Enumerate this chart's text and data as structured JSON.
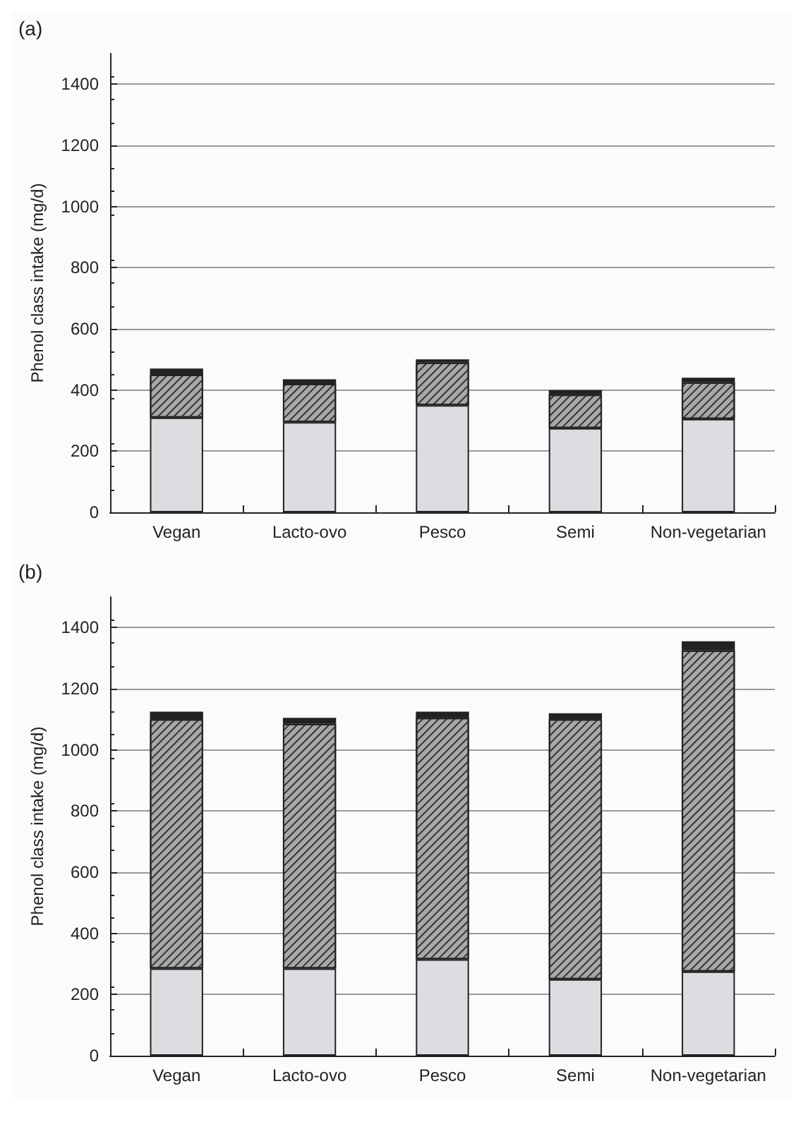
{
  "chart_data": [
    {
      "type": "bar",
      "title": "(a)",
      "ylabel": "Phenol class intake (mg/d)",
      "categories": [
        "Vegan",
        "Lacto-ovo",
        "Pesco",
        "Semi",
        "Non-vegetarian"
      ],
      "stacked": true,
      "series": [
        {
          "color": "#dcdde0",
          "values": [
            310,
            295,
            350,
            275,
            305
          ]
        },
        {
          "color": "#a8a8a8",
          "values": [
            140,
            125,
            140,
            110,
            120
          ]
        },
        {
          "color": "#222222",
          "values": [
            20,
            15,
            10,
            15,
            15
          ]
        }
      ],
      "ylim": [
        0,
        1500
      ],
      "yticks": [
        0,
        200,
        400,
        600,
        800,
        1000,
        1200,
        1400
      ],
      "grid": "y"
    },
    {
      "type": "bar",
      "title": "(b)",
      "ylabel": "Phenol class intake (mg/d)",
      "categories": [
        "Vegan",
        "Lacto-ovo",
        "Pesco",
        "Semi",
        "Non-vegetarian"
      ],
      "stacked": true,
      "series": [
        {
          "color": "#dcdde0",
          "values": [
            285,
            285,
            315,
            250,
            275
          ]
        },
        {
          "color": "#a8a8a8",
          "values": [
            815,
            800,
            790,
            850,
            1050
          ]
        },
        {
          "color": "#222222",
          "values": [
            25,
            20,
            20,
            20,
            30
          ]
        }
      ],
      "ylim": [
        0,
        1500
      ],
      "yticks": [
        0,
        200,
        400,
        600,
        800,
        1000,
        1200,
        1400
      ],
      "grid": "y"
    }
  ]
}
